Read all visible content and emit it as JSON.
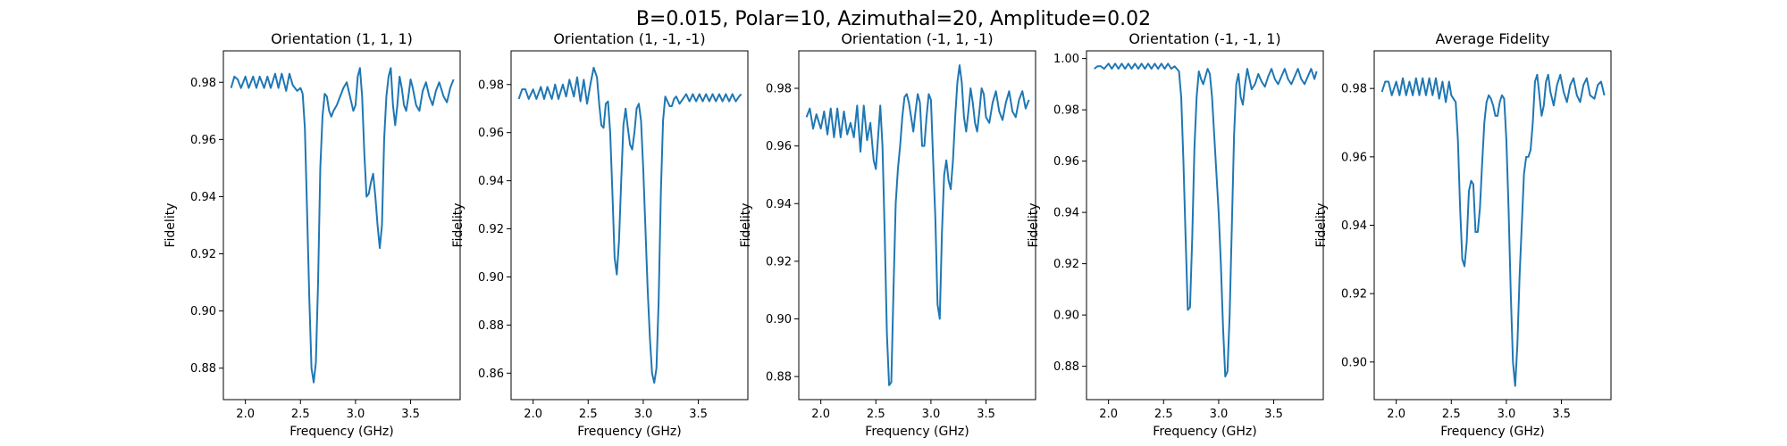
{
  "figure_title": "B=0.015, Polar=10, Azimuthal=20, Amplitude=0.02",
  "chart_data": [
    {
      "type": "line",
      "title": "Orientation (1, 1, 1)",
      "xlabel": "Frequency (GHz)",
      "ylabel": "Fidelity",
      "xlim": [
        1.8,
        3.95
      ],
      "ylim": [
        0.869,
        0.991
      ],
      "xticks": [
        "2.0",
        "2.5",
        "3.0",
        "3.5"
      ],
      "yticks": [
        "0.88",
        "0.90",
        "0.92",
        "0.94",
        "0.96",
        "0.98"
      ],
      "grid": false,
      "legend": "none",
      "color": "#1f77b4",
      "series": [
        {
          "x": [
            1.87,
            1.9,
            1.93,
            1.96,
            2.0,
            2.03,
            2.07,
            2.1,
            2.13,
            2.17,
            2.2,
            2.23,
            2.27,
            2.3,
            2.33,
            2.37,
            2.4,
            2.43,
            2.47,
            2.5,
            2.52,
            2.54,
            2.56,
            2.58,
            2.6,
            2.62,
            2.64,
            2.66,
            2.68,
            2.7,
            2.72,
            2.74,
            2.76,
            2.78,
            2.8,
            2.83,
            2.86,
            2.89,
            2.92,
            2.95,
            2.98,
            3.0,
            3.02,
            3.04,
            3.06,
            3.08,
            3.1,
            3.12,
            3.14,
            3.16,
            3.18,
            3.2,
            3.22,
            3.24,
            3.26,
            3.28,
            3.3,
            3.32,
            3.34,
            3.36,
            3.38,
            3.4,
            3.42,
            3.44,
            3.46,
            3.48,
            3.5,
            3.52,
            3.55,
            3.58,
            3.61,
            3.64,
            3.67,
            3.7,
            3.73,
            3.76,
            3.8,
            3.83,
            3.86,
            3.89
          ],
          "y": [
            0.978,
            0.982,
            0.981,
            0.978,
            0.982,
            0.978,
            0.982,
            0.978,
            0.982,
            0.978,
            0.982,
            0.978,
            0.983,
            0.978,
            0.983,
            0.977,
            0.983,
            0.979,
            0.977,
            0.978,
            0.976,
            0.964,
            0.935,
            0.905,
            0.88,
            0.875,
            0.882,
            0.91,
            0.95,
            0.968,
            0.976,
            0.975,
            0.97,
            0.968,
            0.97,
            0.972,
            0.975,
            0.978,
            0.98,
            0.975,
            0.97,
            0.972,
            0.982,
            0.985,
            0.975,
            0.955,
            0.94,
            0.941,
            0.945,
            0.948,
            0.94,
            0.93,
            0.922,
            0.93,
            0.96,
            0.975,
            0.982,
            0.985,
            0.972,
            0.965,
            0.972,
            0.982,
            0.978,
            0.972,
            0.97,
            0.975,
            0.981,
            0.978,
            0.972,
            0.97,
            0.977,
            0.98,
            0.975,
            0.972,
            0.977,
            0.98,
            0.975,
            0.973,
            0.978,
            0.981
          ]
        }
      ]
    },
    {
      "type": "line",
      "title": "Orientation (1, -1, -1)",
      "xlabel": "Frequency (GHz)",
      "ylabel": "Fidelity",
      "xlim": [
        1.8,
        3.95
      ],
      "ylim": [
        0.849,
        0.994
      ],
      "xticks": [
        "2.0",
        "2.5",
        "3.0",
        "3.5"
      ],
      "yticks": [
        "0.86",
        "0.88",
        "0.90",
        "0.92",
        "0.94",
        "0.96",
        "0.98"
      ],
      "grid": false,
      "legend": "none",
      "color": "#1f77b4",
      "series": [
        {
          "x": [
            1.87,
            1.9,
            1.93,
            1.96,
            2.0,
            2.03,
            2.07,
            2.1,
            2.13,
            2.17,
            2.2,
            2.23,
            2.27,
            2.3,
            2.33,
            2.37,
            2.4,
            2.43,
            2.46,
            2.49,
            2.52,
            2.55,
            2.58,
            2.6,
            2.62,
            2.64,
            2.66,
            2.68,
            2.7,
            2.72,
            2.74,
            2.76,
            2.78,
            2.8,
            2.82,
            2.84,
            2.86,
            2.88,
            2.9,
            2.92,
            2.94,
            2.96,
            2.98,
            3.0,
            3.02,
            3.04,
            3.06,
            3.08,
            3.1,
            3.12,
            3.14,
            3.16,
            3.18,
            3.2,
            3.22,
            3.24,
            3.26,
            3.28,
            3.3,
            3.33,
            3.36,
            3.39,
            3.42,
            3.45,
            3.48,
            3.51,
            3.54,
            3.57,
            3.6,
            3.63,
            3.66,
            3.69,
            3.72,
            3.75,
            3.78,
            3.81,
            3.84,
            3.87,
            3.89
          ],
          "y": [
            0.974,
            0.978,
            0.978,
            0.974,
            0.978,
            0.974,
            0.979,
            0.974,
            0.979,
            0.974,
            0.98,
            0.974,
            0.98,
            0.975,
            0.982,
            0.975,
            0.983,
            0.973,
            0.982,
            0.972,
            0.98,
            0.987,
            0.983,
            0.972,
            0.963,
            0.962,
            0.972,
            0.973,
            0.96,
            0.935,
            0.908,
            0.901,
            0.915,
            0.94,
            0.963,
            0.97,
            0.962,
            0.955,
            0.953,
            0.96,
            0.97,
            0.972,
            0.965,
            0.945,
            0.92,
            0.895,
            0.875,
            0.86,
            0.856,
            0.862,
            0.89,
            0.935,
            0.965,
            0.975,
            0.973,
            0.971,
            0.971,
            0.974,
            0.975,
            0.972,
            0.974,
            0.976,
            0.973,
            0.976,
            0.973,
            0.976,
            0.973,
            0.976,
            0.973,
            0.976,
            0.973,
            0.976,
            0.973,
            0.976,
            0.973,
            0.976,
            0.973,
            0.975,
            0.976
          ]
        }
      ]
    },
    {
      "type": "line",
      "title": "Orientation (-1, 1, -1)",
      "xlabel": "Frequency (GHz)",
      "ylabel": "Fidelity",
      "xlim": [
        1.8,
        3.95
      ],
      "ylim": [
        0.872,
        0.993
      ],
      "xticks": [
        "2.0",
        "2.5",
        "3.0",
        "3.5"
      ],
      "yticks": [
        "0.88",
        "0.90",
        "0.92",
        "0.94",
        "0.96",
        "0.98"
      ],
      "grid": false,
      "legend": "none",
      "color": "#1f77b4",
      "series": [
        {
          "x": [
            1.87,
            1.9,
            1.93,
            1.96,
            2.0,
            2.03,
            2.06,
            2.09,
            2.12,
            2.15,
            2.18,
            2.21,
            2.24,
            2.27,
            2.3,
            2.33,
            2.36,
            2.39,
            2.42,
            2.45,
            2.48,
            2.5,
            2.52,
            2.54,
            2.56,
            2.58,
            2.6,
            2.62,
            2.64,
            2.66,
            2.68,
            2.7,
            2.72,
            2.74,
            2.76,
            2.78,
            2.8,
            2.82,
            2.84,
            2.86,
            2.88,
            2.9,
            2.92,
            2.94,
            2.96,
            2.98,
            3.0,
            3.02,
            3.04,
            3.06,
            3.08,
            3.1,
            3.12,
            3.14,
            3.16,
            3.18,
            3.2,
            3.22,
            3.24,
            3.26,
            3.28,
            3.3,
            3.32,
            3.34,
            3.36,
            3.38,
            3.4,
            3.42,
            3.44,
            3.46,
            3.48,
            3.5,
            3.53,
            3.56,
            3.59,
            3.62,
            3.65,
            3.68,
            3.71,
            3.74,
            3.77,
            3.8,
            3.83,
            3.86,
            3.89
          ],
          "y": [
            0.97,
            0.973,
            0.966,
            0.971,
            0.966,
            0.972,
            0.964,
            0.973,
            0.963,
            0.973,
            0.963,
            0.972,
            0.964,
            0.968,
            0.963,
            0.974,
            0.958,
            0.974,
            0.962,
            0.968,
            0.955,
            0.952,
            0.963,
            0.974,
            0.96,
            0.93,
            0.895,
            0.877,
            0.878,
            0.91,
            0.94,
            0.952,
            0.96,
            0.97,
            0.977,
            0.978,
            0.975,
            0.97,
            0.965,
            0.972,
            0.978,
            0.975,
            0.96,
            0.96,
            0.97,
            0.978,
            0.976,
            0.955,
            0.935,
            0.905,
            0.9,
            0.93,
            0.95,
            0.955,
            0.948,
            0.945,
            0.955,
            0.97,
            0.982,
            0.988,
            0.982,
            0.97,
            0.965,
            0.972,
            0.98,
            0.975,
            0.968,
            0.965,
            0.972,
            0.98,
            0.978,
            0.97,
            0.968,
            0.975,
            0.979,
            0.972,
            0.969,
            0.975,
            0.979,
            0.972,
            0.97,
            0.976,
            0.979,
            0.973,
            0.976
          ]
        }
      ]
    },
    {
      "type": "line",
      "title": "Orientation (-1, -1, 1)",
      "xlabel": "Frequency (GHz)",
      "ylabel": "Fidelity",
      "xlim": [
        1.8,
        3.95
      ],
      "ylim": [
        0.867,
        1.003
      ],
      "xticks": [
        "2.0",
        "2.5",
        "3.0",
        "3.5"
      ],
      "yticks": [
        "0.88",
        "0.90",
        "0.92",
        "0.94",
        "0.96",
        "0.98",
        "1.00"
      ],
      "grid": false,
      "legend": "none",
      "color": "#1f77b4",
      "series": [
        {
          "x": [
            1.87,
            1.9,
            1.93,
            1.96,
            2.0,
            2.03,
            2.06,
            2.09,
            2.12,
            2.15,
            2.18,
            2.21,
            2.24,
            2.27,
            2.3,
            2.33,
            2.36,
            2.39,
            2.42,
            2.45,
            2.48,
            2.51,
            2.54,
            2.57,
            2.6,
            2.62,
            2.64,
            2.66,
            2.68,
            2.7,
            2.72,
            2.74,
            2.76,
            2.78,
            2.8,
            2.82,
            2.84,
            2.86,
            2.88,
            2.9,
            2.92,
            2.94,
            2.96,
            2.98,
            3.0,
            3.02,
            3.04,
            3.06,
            3.08,
            3.1,
            3.12,
            3.14,
            3.16,
            3.18,
            3.2,
            3.22,
            3.24,
            3.26,
            3.28,
            3.3,
            3.33,
            3.36,
            3.39,
            3.42,
            3.45,
            3.48,
            3.51,
            3.54,
            3.57,
            3.6,
            3.63,
            3.66,
            3.69,
            3.72,
            3.75,
            3.78,
            3.81,
            3.84,
            3.87,
            3.89
          ],
          "y": [
            0.996,
            0.997,
            0.997,
            0.996,
            0.998,
            0.996,
            0.998,
            0.996,
            0.998,
            0.996,
            0.998,
            0.996,
            0.998,
            0.996,
            0.998,
            0.996,
            0.998,
            0.996,
            0.998,
            0.996,
            0.998,
            0.996,
            0.998,
            0.996,
            0.997,
            0.996,
            0.995,
            0.985,
            0.96,
            0.93,
            0.902,
            0.903,
            0.93,
            0.965,
            0.985,
            0.995,
            0.992,
            0.99,
            0.993,
            0.996,
            0.994,
            0.985,
            0.97,
            0.955,
            0.94,
            0.92,
            0.895,
            0.876,
            0.878,
            0.9,
            0.935,
            0.97,
            0.99,
            0.994,
            0.985,
            0.982,
            0.99,
            0.996,
            0.992,
            0.988,
            0.99,
            0.994,
            0.991,
            0.989,
            0.993,
            0.996,
            0.992,
            0.99,
            0.993,
            0.996,
            0.992,
            0.99,
            0.993,
            0.996,
            0.992,
            0.99,
            0.993,
            0.996,
            0.992,
            0.995
          ]
        }
      ]
    },
    {
      "type": "line",
      "title": "Average Fidelity",
      "xlabel": "Frequency (GHz)",
      "ylabel": "Fidelity",
      "xlim": [
        1.8,
        3.95
      ],
      "ylim": [
        0.889,
        0.991
      ],
      "xticks": [
        "2.0",
        "2.5",
        "3.0",
        "3.5"
      ],
      "yticks": [
        "0.90",
        "0.92",
        "0.94",
        "0.96",
        "0.98"
      ],
      "grid": false,
      "legend": "none",
      "color": "#1f77b4",
      "series": [
        {
          "x": [
            1.87,
            1.9,
            1.93,
            1.96,
            2.0,
            2.03,
            2.06,
            2.09,
            2.12,
            2.15,
            2.18,
            2.21,
            2.24,
            2.27,
            2.3,
            2.33,
            2.36,
            2.39,
            2.42,
            2.45,
            2.48,
            2.5,
            2.52,
            2.54,
            2.56,
            2.58,
            2.6,
            2.62,
            2.64,
            2.66,
            2.68,
            2.7,
            2.72,
            2.74,
            2.76,
            2.78,
            2.8,
            2.82,
            2.84,
            2.86,
            2.88,
            2.9,
            2.92,
            2.94,
            2.96,
            2.98,
            3.0,
            3.02,
            3.04,
            3.06,
            3.08,
            3.1,
            3.12,
            3.14,
            3.16,
            3.18,
            3.2,
            3.22,
            3.24,
            3.26,
            3.28,
            3.3,
            3.32,
            3.34,
            3.36,
            3.38,
            3.4,
            3.43,
            3.46,
            3.49,
            3.52,
            3.55,
            3.58,
            3.61,
            3.64,
            3.67,
            3.7,
            3.73,
            3.76,
            3.8,
            3.83,
            3.86,
            3.89
          ],
          "y": [
            0.979,
            0.982,
            0.982,
            0.978,
            0.982,
            0.978,
            0.983,
            0.978,
            0.982,
            0.978,
            0.983,
            0.978,
            0.983,
            0.978,
            0.983,
            0.978,
            0.983,
            0.977,
            0.982,
            0.976,
            0.982,
            0.978,
            0.977,
            0.976,
            0.965,
            0.945,
            0.93,
            0.928,
            0.935,
            0.95,
            0.953,
            0.952,
            0.938,
            0.938,
            0.945,
            0.958,
            0.97,
            0.976,
            0.978,
            0.977,
            0.975,
            0.972,
            0.972,
            0.976,
            0.978,
            0.977,
            0.965,
            0.945,
            0.92,
            0.9,
            0.893,
            0.905,
            0.925,
            0.94,
            0.955,
            0.96,
            0.96,
            0.962,
            0.97,
            0.982,
            0.984,
            0.978,
            0.972,
            0.975,
            0.982,
            0.984,
            0.979,
            0.975,
            0.981,
            0.984,
            0.979,
            0.976,
            0.981,
            0.983,
            0.978,
            0.976,
            0.981,
            0.983,
            0.978,
            0.977,
            0.981,
            0.982,
            0.978
          ]
        }
      ]
    }
  ]
}
